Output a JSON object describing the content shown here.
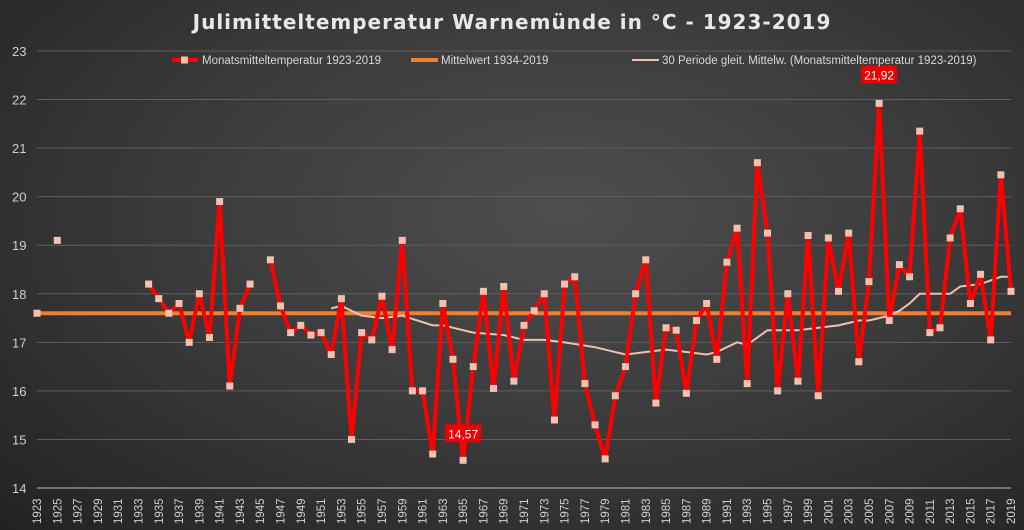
{
  "chart_data": {
    "type": "line",
    "title": "Julimitteltemperatur Warnemünde in °C - 1923-2019",
    "xlabel": "",
    "ylabel": "",
    "ylim": [
      14,
      23
    ],
    "yticks": [
      14,
      15,
      16,
      17,
      18,
      19,
      20,
      21,
      22,
      23
    ],
    "xlim": [
      1923,
      2019
    ],
    "grid": true,
    "legend_position": "top",
    "x": [
      1923,
      1924,
      1925,
      1926,
      1927,
      1928,
      1929,
      1930,
      1931,
      1932,
      1933,
      1934,
      1935,
      1936,
      1937,
      1938,
      1939,
      1940,
      1941,
      1942,
      1943,
      1944,
      1945,
      1946,
      1947,
      1948,
      1949,
      1950,
      1951,
      1952,
      1953,
      1954,
      1955,
      1956,
      1957,
      1958,
      1959,
      1960,
      1961,
      1962,
      1963,
      1964,
      1965,
      1966,
      1967,
      1968,
      1969,
      1970,
      1971,
      1972,
      1973,
      1974,
      1975,
      1976,
      1977,
      1978,
      1979,
      1980,
      1981,
      1982,
      1983,
      1984,
      1985,
      1986,
      1987,
      1988,
      1989,
      1990,
      1991,
      1992,
      1993,
      1994,
      1995,
      1996,
      1997,
      1998,
      1999,
      2000,
      2001,
      2002,
      2003,
      2004,
      2005,
      2006,
      2007,
      2008,
      2009,
      2010,
      2011,
      2012,
      2013,
      2014,
      2015,
      2016,
      2017,
      2018,
      2019
    ],
    "series": [
      {
        "name": "Monatsmitteltemperatur 1923-2019",
        "color": "#ff0000",
        "marker_color": "#f4c0b0",
        "values": [
          17.6,
          null,
          19.1,
          null,
          null,
          null,
          null,
          null,
          null,
          null,
          null,
          18.2,
          17.9,
          17.6,
          17.8,
          17.0,
          18.0,
          17.1,
          19.9,
          16.1,
          17.7,
          18.2,
          null,
          18.7,
          17.75,
          17.2,
          17.35,
          17.15,
          17.2,
          16.75,
          17.9,
          15.0,
          17.2,
          17.05,
          17.95,
          16.85,
          19.1,
          16.0,
          16.0,
          14.7,
          17.8,
          16.65,
          14.57,
          16.5,
          18.05,
          16.05,
          18.15,
          16.2,
          17.35,
          17.65,
          18.0,
          15.4,
          18.2,
          18.35,
          16.15,
          15.3,
          14.6,
          15.9,
          16.5,
          18.0,
          18.7,
          15.75,
          17.3,
          17.25,
          15.95,
          17.45,
          17.8,
          16.65,
          18.65,
          19.35,
          16.15,
          20.7,
          19.25,
          16.0,
          18.0,
          16.2,
          19.2,
          15.9,
          19.15,
          18.05,
          19.25,
          16.6,
          18.25,
          21.92,
          17.45,
          18.6,
          18.35,
          21.35,
          17.2,
          17.3,
          19.15,
          19.75,
          17.8,
          18.4,
          17.05,
          20.45,
          18.05
        ]
      },
      {
        "name": "Mittelwert 1934-2019",
        "color": "#f08030",
        "constant": 17.6
      },
      {
        "name": "30 Periode gleit. Mittelw. (Monatsmitteltemperatur 1923-2019)",
        "color": "#f0c0b0",
        "x": [
          1952,
          1953,
          1955,
          1957,
          1959,
          1962,
          1963,
          1966,
          1969,
          1971,
          1973,
          1975,
          1978,
          1980,
          1981,
          1983,
          1985,
          1987,
          1989,
          1990,
          1992,
          1993,
          1995,
          1998,
          2000,
          2002,
          2004,
          2005,
          2007,
          2008,
          2009,
          2010,
          2013,
          2014,
          2016,
          2018,
          2019
        ],
        "values": [
          17.7,
          17.75,
          17.55,
          17.5,
          17.55,
          17.35,
          17.35,
          17.2,
          17.15,
          17.05,
          17.05,
          17.0,
          16.9,
          16.8,
          16.75,
          16.8,
          16.85,
          16.8,
          16.75,
          16.8,
          17.0,
          16.95,
          17.25,
          17.25,
          17.3,
          17.35,
          17.45,
          17.45,
          17.55,
          17.65,
          17.8,
          18.0,
          18.0,
          18.15,
          18.2,
          18.35,
          18.35
        ]
      }
    ],
    "annotations": [
      {
        "x": 1965,
        "y": 14.57,
        "label": "14,57"
      },
      {
        "x": 2006,
        "y": 21.92,
        "label": "21,92"
      }
    ]
  }
}
